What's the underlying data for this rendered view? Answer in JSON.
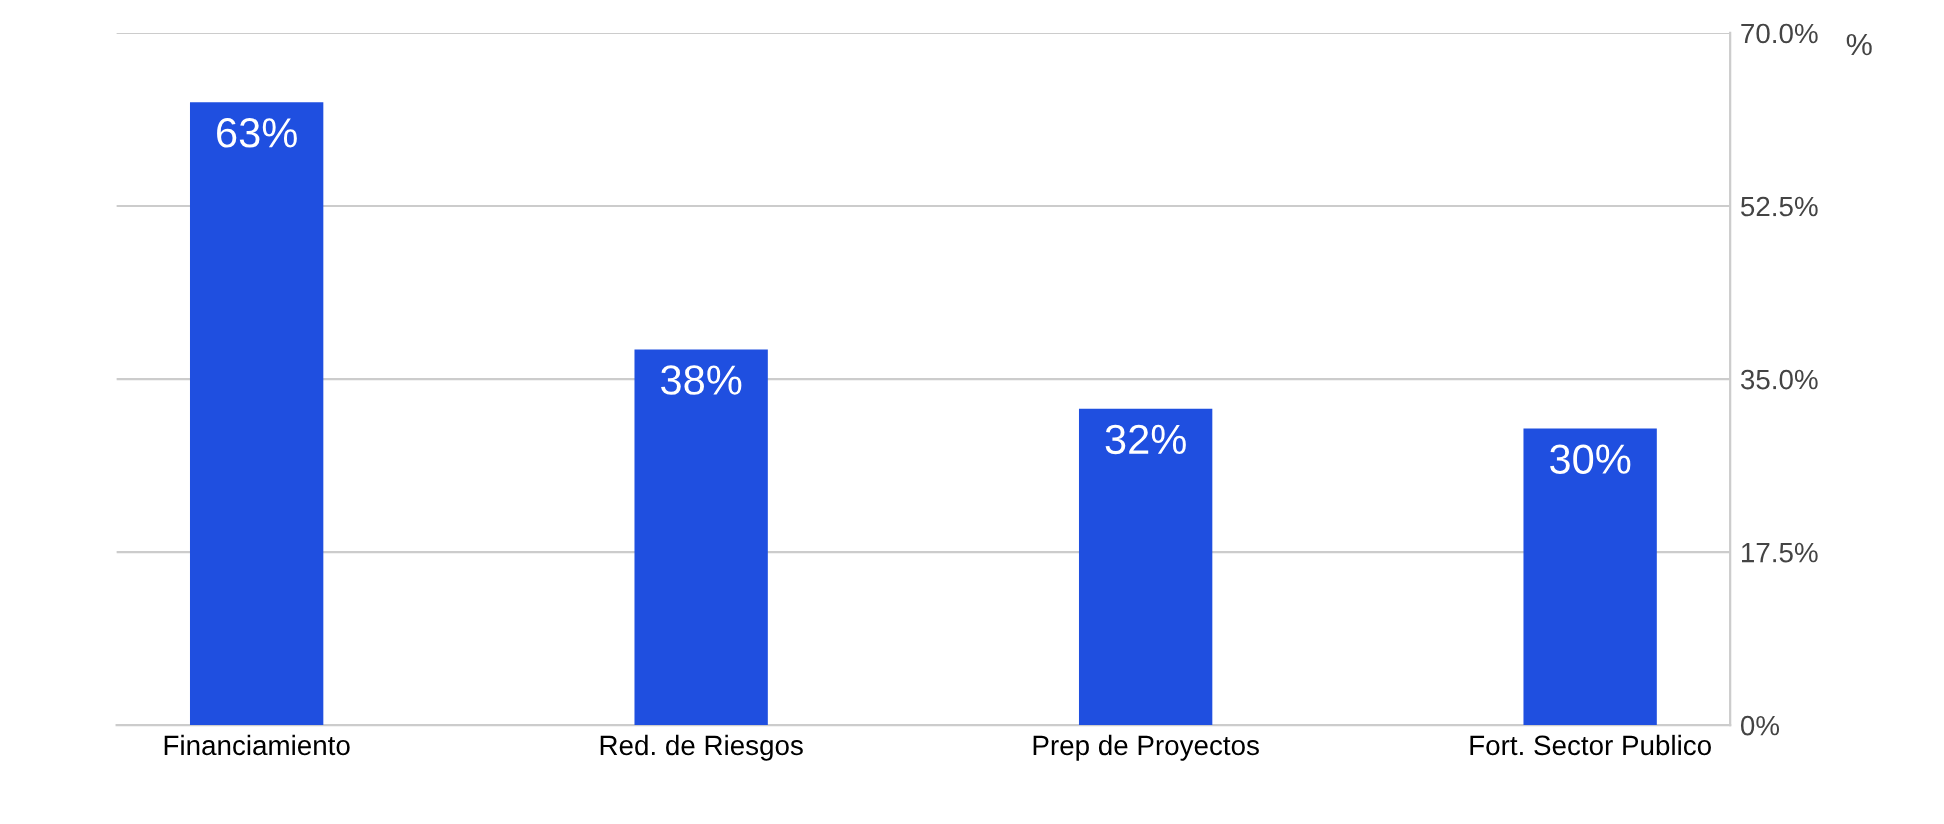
{
  "chart_data": {
    "type": "bar",
    "categories": [
      "Financiamiento",
      "Red. de Riesgos",
      "Prep de Proyectos",
      "Fort. Sector Publico"
    ],
    "values": [
      63,
      38,
      32,
      30
    ],
    "color": "#1f4fe0",
    "value_labels": [
      "63%",
      "38%",
      "32%",
      "30%"
    ],
    "ylabel": "%",
    "ylim": [
      0,
      70
    ],
    "yticks": [
      {
        "value": 0,
        "label": "0%"
      },
      {
        "value": 17.5,
        "label": "17.5%"
      },
      {
        "value": 35,
        "label": "35.0%"
      },
      {
        "value": 52.5,
        "label": "52.5%"
      },
      {
        "value": 70,
        "label": "70.0%"
      }
    ],
    "grid": "y"
  }
}
